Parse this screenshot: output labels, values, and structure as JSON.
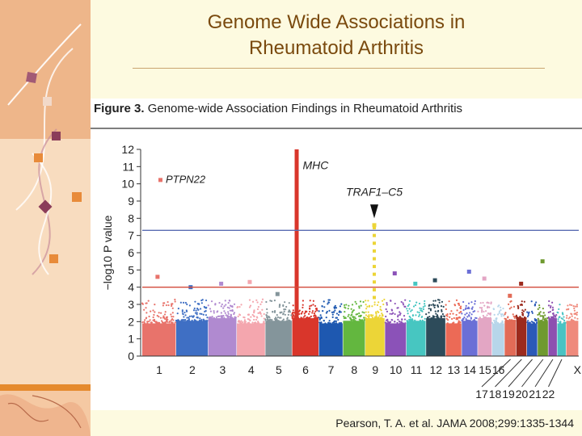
{
  "slide": {
    "title_line1": "Genome Wide Associations in",
    "title_line2": "Rheumatoid Arthritis",
    "citation_plain": "Pearson, T. A. et al. ",
    "citation_journal": "JAMA 2008;299:1335-1344"
  },
  "figure": {
    "label": "Figure 3.",
    "caption": "Genome-wide Association Findings in Rheumatoid Arthritis"
  },
  "chart_data": {
    "type": "scatter",
    "ylabel": "−log10 P value",
    "ylim": [
      0,
      12
    ],
    "yticks": [
      0,
      1,
      2,
      3,
      4,
      5,
      6,
      7,
      8,
      9,
      10,
      11,
      12
    ],
    "reference_lines": [
      {
        "y": 7.3,
        "color": "#5a6db3"
      },
      {
        "y": 4.0,
        "color": "#d24a3a"
      }
    ],
    "chromosomes": [
      {
        "label": "1",
        "color": "#e8736b",
        "peak": 4.6
      },
      {
        "label": "2",
        "color": "#3f6fc4",
        "peak": 4.0
      },
      {
        "label": "3",
        "color": "#b08ad0",
        "peak": 4.2
      },
      {
        "label": "4",
        "color": "#f4a6ae",
        "peak": 4.3
      },
      {
        "label": "5",
        "color": "#84959b",
        "peak": 3.6
      },
      {
        "label": "6",
        "color": "#d9362b",
        "peak": 12
      },
      {
        "label": "7",
        "color": "#1e58b0",
        "peak": 3.4
      },
      {
        "label": "8",
        "color": "#63b73f",
        "peak": 3.2
      },
      {
        "label": "9",
        "color": "#ecd537",
        "peak": 7.6
      },
      {
        "label": "10",
        "color": "#8b52b8",
        "peak": 4.8
      },
      {
        "label": "11",
        "color": "#47c6c1",
        "peak": 4.2
      },
      {
        "label": "12",
        "color": "#2d4b5a",
        "peak": 4.4
      },
      {
        "label": "13",
        "color": "#ec6a56",
        "peak": 3.4
      },
      {
        "label": "14",
        "color": "#6b6fd6",
        "peak": 4.9
      },
      {
        "label": "15",
        "color": "#e3a6c4",
        "peak": 4.5
      },
      {
        "label": "16",
        "color": "#b7d6ea",
        "peak": 3.0
      },
      {
        "label": "17",
        "color": "#e26b57",
        "peak": 3.5
      },
      {
        "label": "18",
        "color": "#9c2a1d",
        "peak": 4.2
      },
      {
        "label": "19",
        "color": "#2b59b8",
        "peak": 3.2
      },
      {
        "label": "20",
        "color": "#6f9a2f",
        "peak": 5.5
      },
      {
        "label": "21",
        "color": "#8d4fb0",
        "peak": 3.2
      },
      {
        "label": "22",
        "color": "#4ac3c3",
        "peak": 3.0
      },
      {
        "label": "X",
        "color": "#ef8a7c",
        "peak": 3.0
      }
    ],
    "annotations": [
      {
        "text": "MHC",
        "chromosome": "6"
      },
      {
        "text": "TRAF1–C5",
        "chromosome": "9"
      },
      {
        "text": "PTPN22",
        "chromosome": "1"
      }
    ]
  }
}
